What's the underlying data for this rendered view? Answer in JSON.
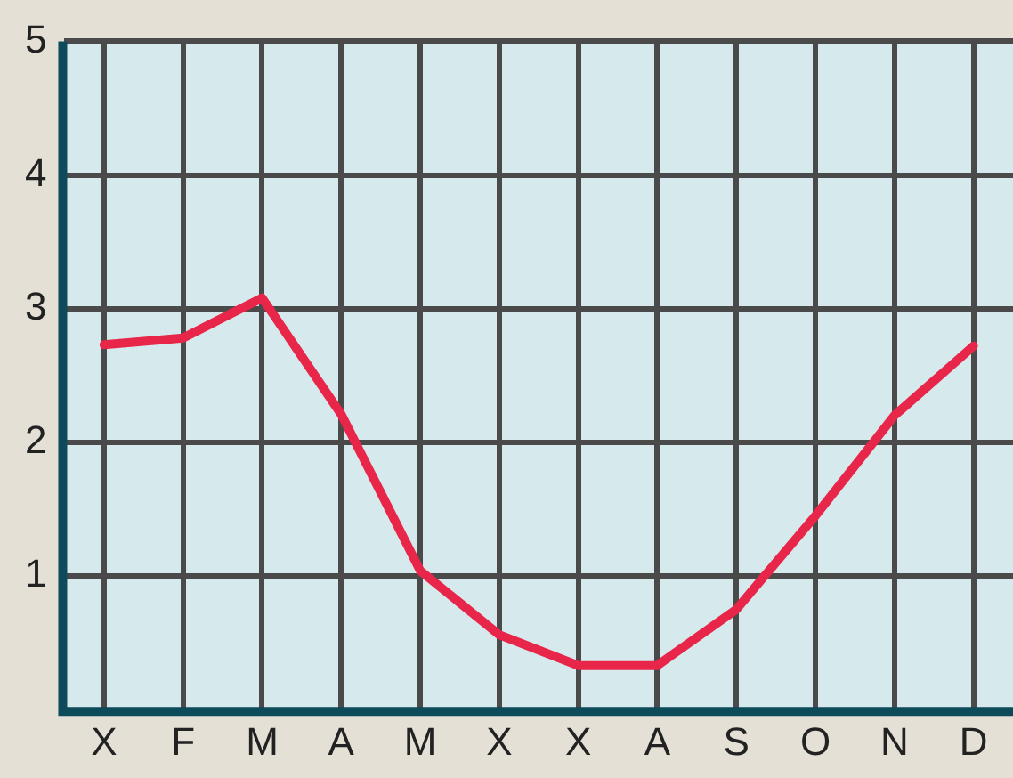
{
  "chart_data": {
    "type": "line",
    "categories": [
      "X",
      "F",
      "M",
      "A",
      "M",
      "X",
      "X",
      "A",
      "S",
      "O",
      "N",
      "D"
    ],
    "series": [
      {
        "color": "#e8264a",
        "values": [
          2.73,
          2.78,
          3.08,
          2.21,
          1.04,
          0.56,
          0.33,
          0.33,
          0.75,
          1.45,
          2.2,
          2.72
        ]
      }
    ],
    "ylim": [
      0,
      5
    ],
    "yticks": [
      1,
      2,
      3,
      4,
      5
    ],
    "grid": true,
    "legend": false,
    "marker": "none",
    "line_style": "solid"
  }
}
